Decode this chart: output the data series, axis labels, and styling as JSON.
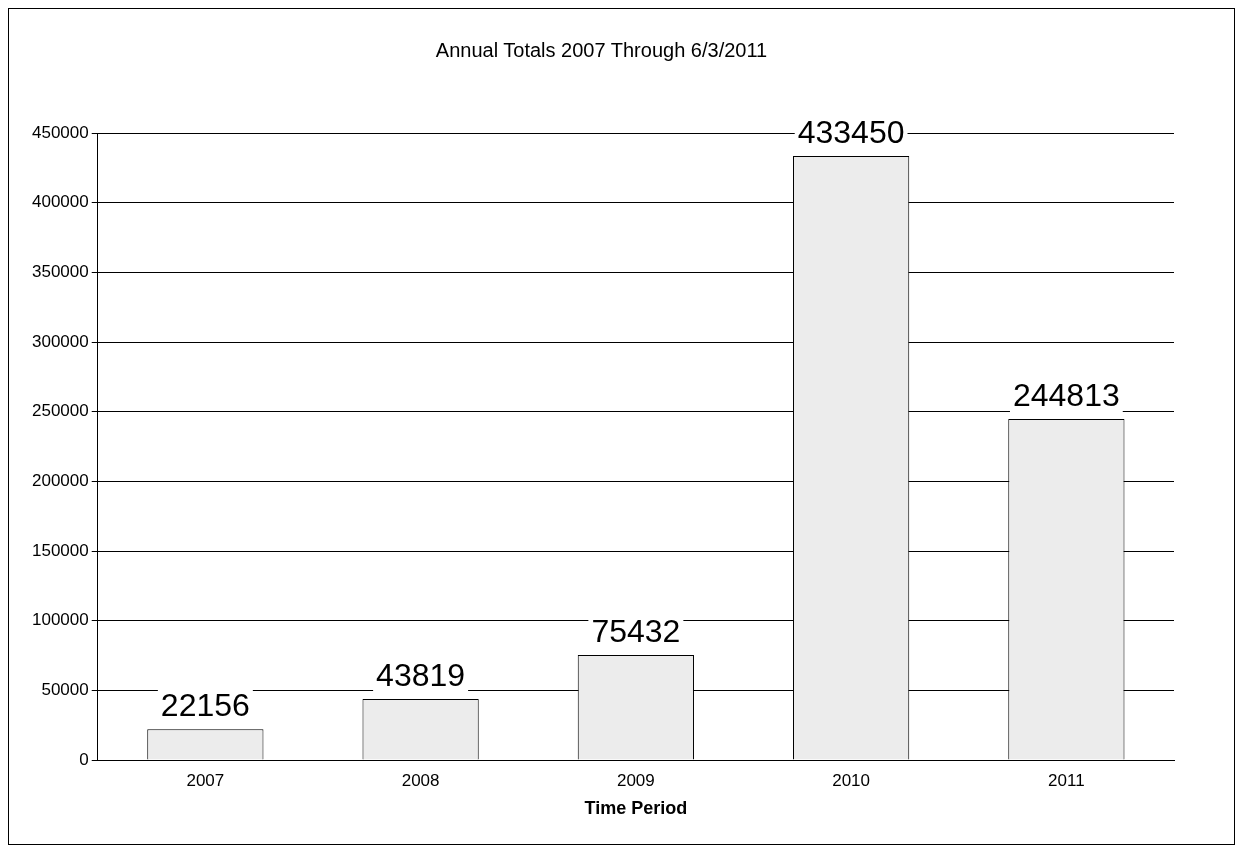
{
  "chart_data": {
    "type": "bar",
    "title": "Annual Totals 2007 Through 6/3/2011",
    "xlabel": "Time Period",
    "categories": [
      "2007",
      "2008",
      "2009",
      "2010",
      "2011"
    ],
    "values": [
      22156,
      43819,
      75432,
      433450,
      244813
    ],
    "color": "#ececec",
    "ylim": [
      0,
      450000
    ],
    "yticks": [
      0,
      50000,
      100000,
      150000,
      200000,
      250000,
      300000,
      350000,
      400000,
      450000
    ],
    "grid": "y",
    "legend": false,
    "data_labels": true
  }
}
